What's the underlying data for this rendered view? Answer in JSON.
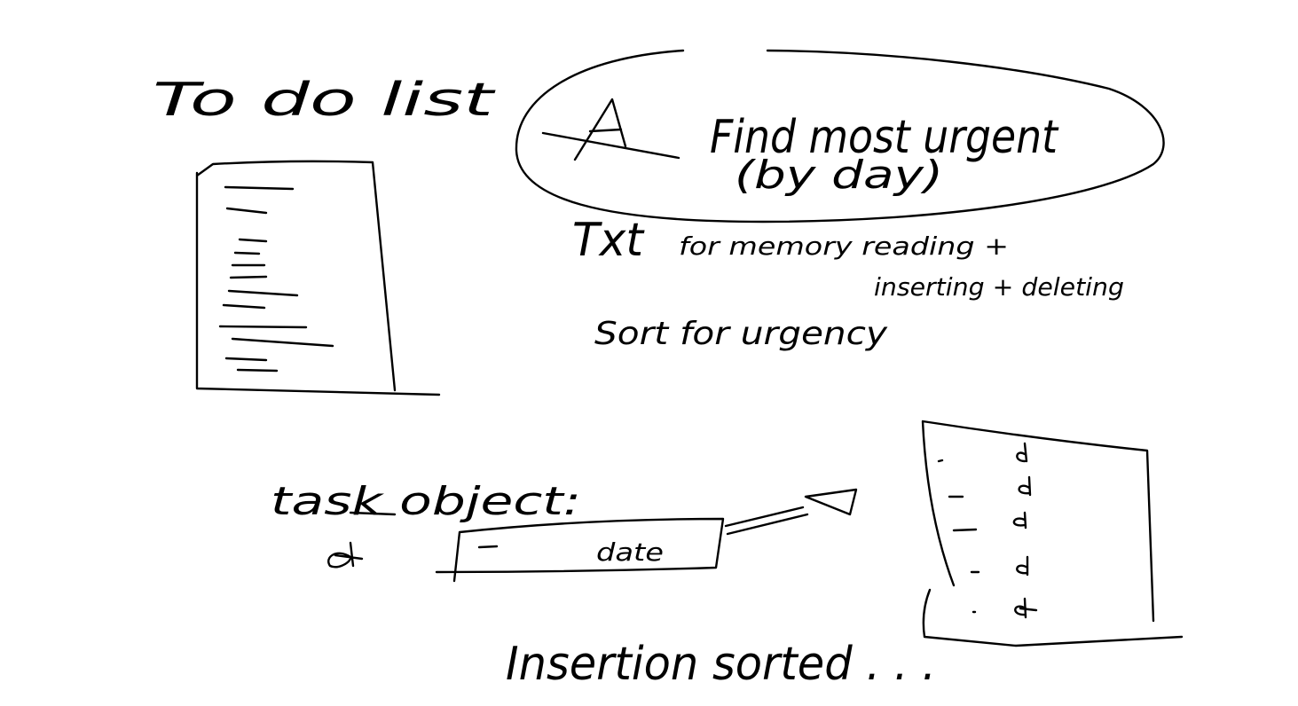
{
  "sketch": {
    "todo_title": "To do list",
    "find_text": "Find most urgent",
    "by_day_text": "(by day)",
    "txt_text": "Txt",
    "memory_text": "for memory reading +",
    "inserting_text": "inserting + deleting",
    "sort_text": "Sort for urgency",
    "task_object_text": "task object:",
    "date_text": "date",
    "insertion_text": "Insertion sorted . . ."
  },
  "colors": {
    "background": "#ffffff",
    "ink": "#000000"
  }
}
